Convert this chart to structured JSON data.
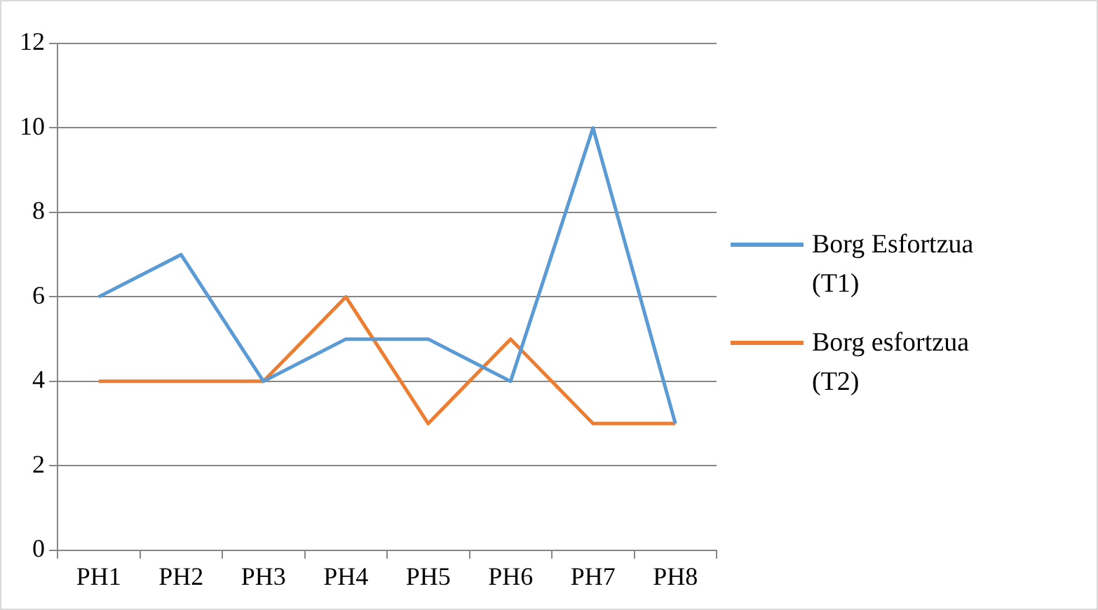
{
  "chart_data": {
    "type": "line",
    "categories": [
      "PH1",
      "PH2",
      "PH3",
      "PH4",
      "PH5",
      "PH6",
      "PH7",
      "PH8"
    ],
    "series": [
      {
        "name": "Borg Esfortzua (T1)",
        "color": "#5b9bd5",
        "values": [
          6,
          7,
          4,
          5,
          5,
          4,
          10,
          3
        ]
      },
      {
        "name": "Borg esfortzua (T2)",
        "color": "#ed7d31",
        "values": [
          4,
          4,
          4,
          6,
          3,
          5,
          3,
          3
        ]
      }
    ],
    "ylim": [
      0,
      12
    ],
    "yticks": [
      0,
      2,
      4,
      6,
      8,
      10,
      12
    ],
    "grid": "y",
    "legend": "right",
    "marker": "none",
    "line_style": "solid"
  }
}
